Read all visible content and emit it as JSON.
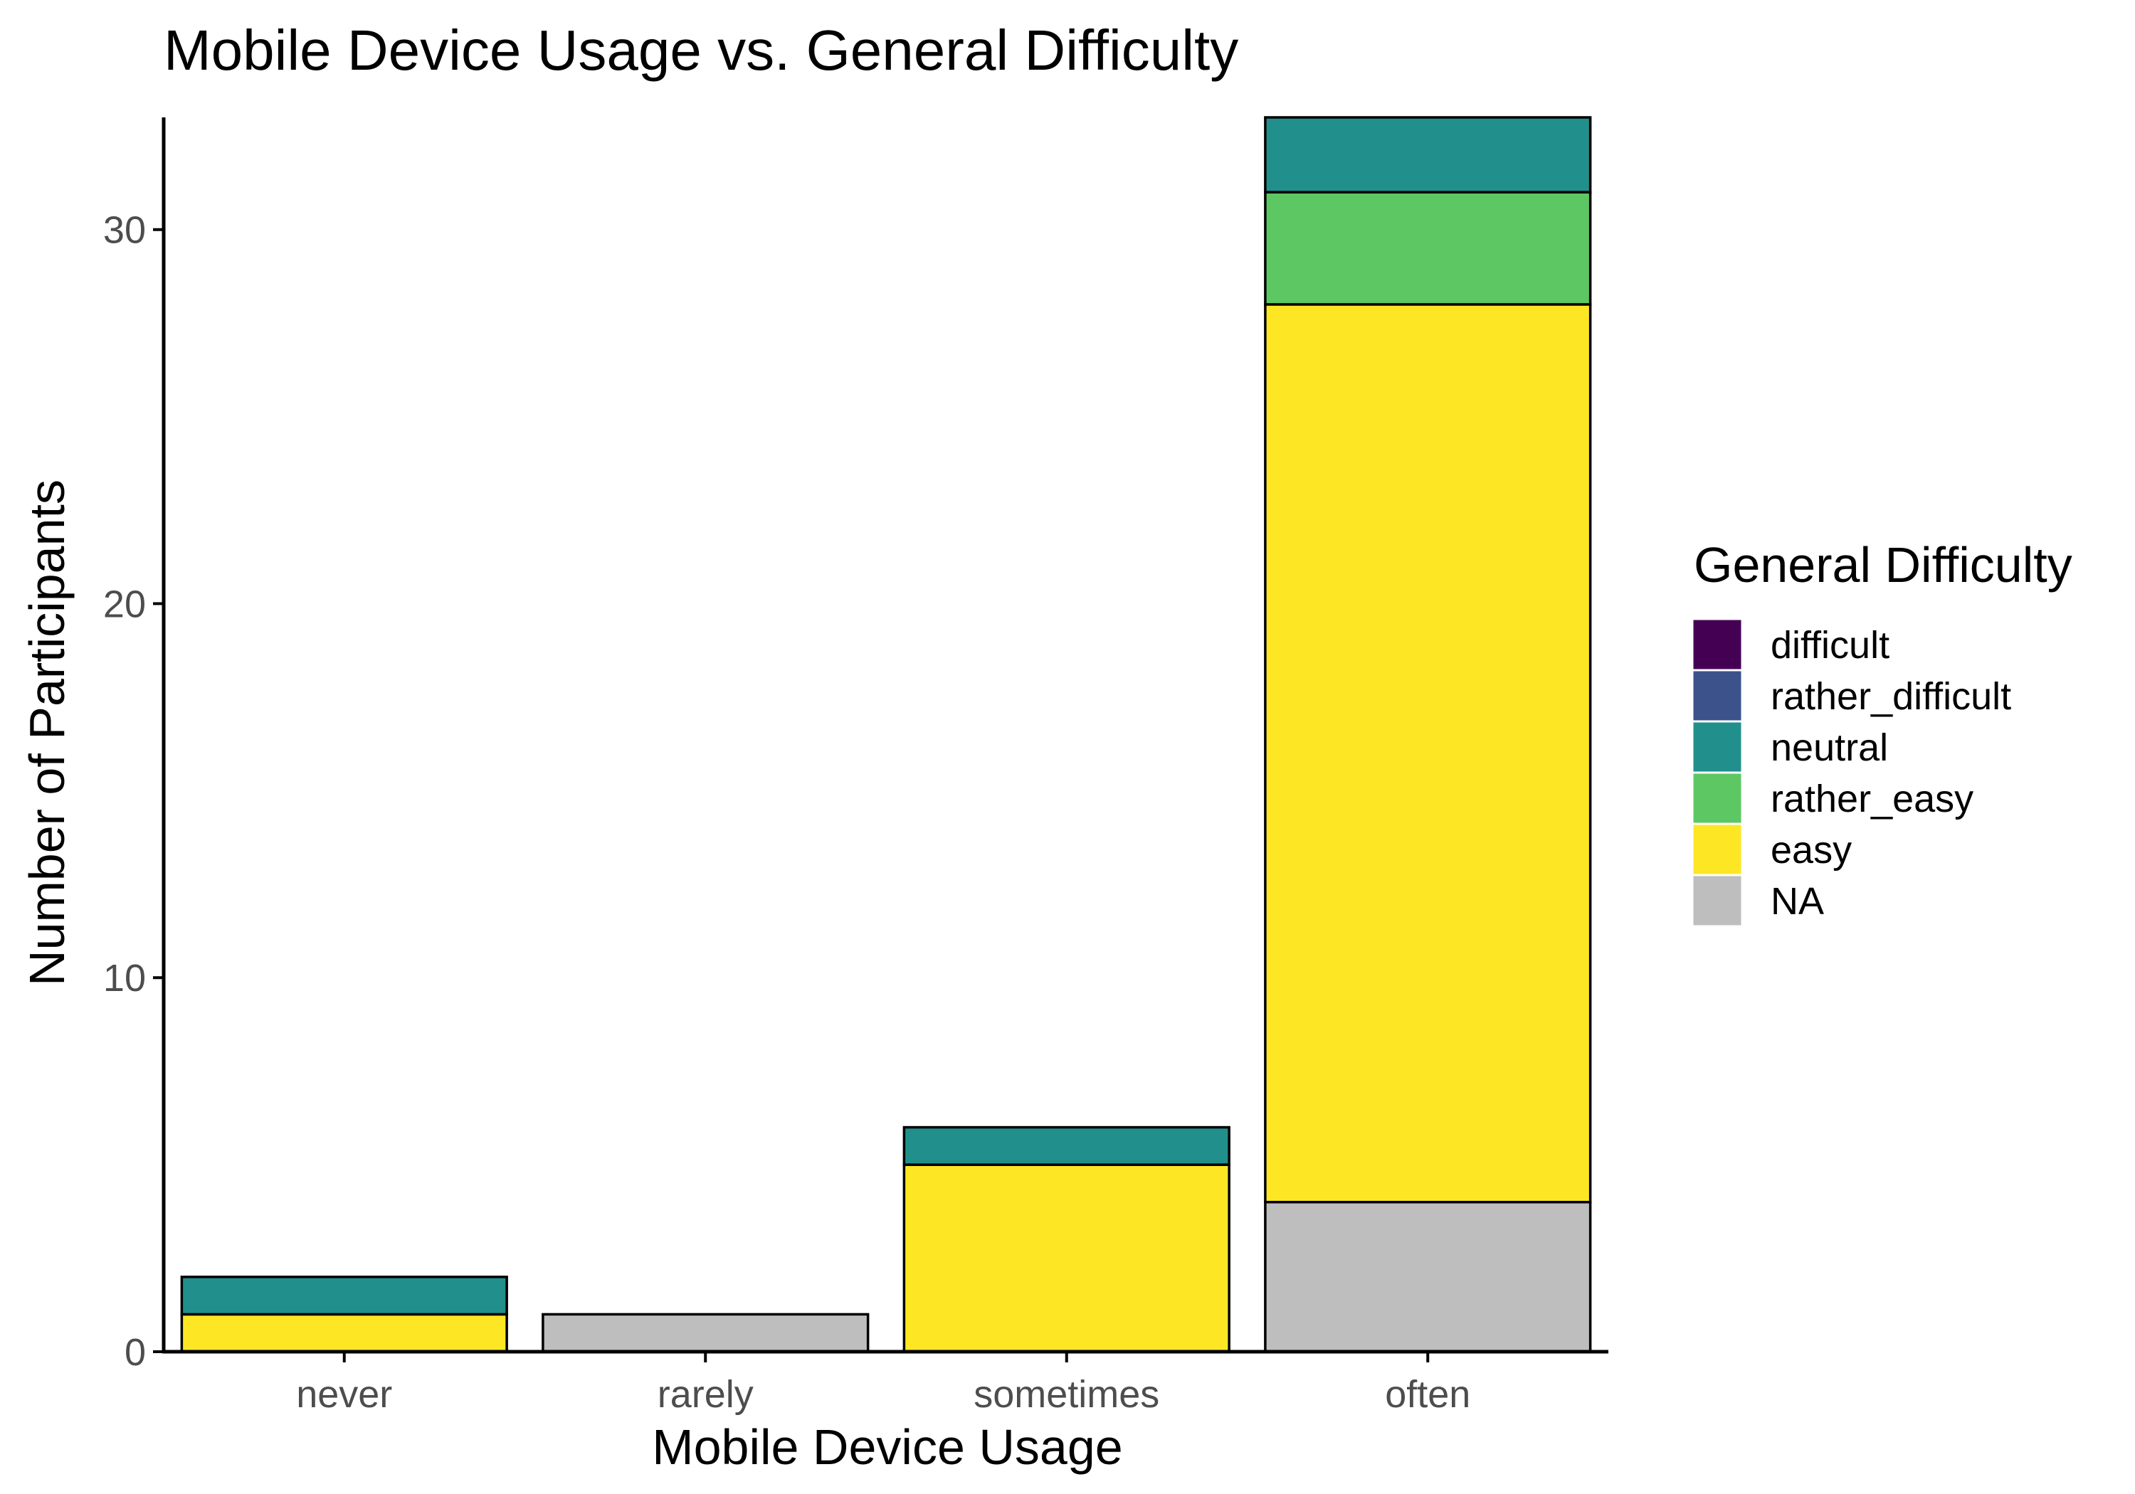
{
  "chart_data": {
    "type": "bar",
    "stacked": true,
    "title": "Mobile Device Usage vs. General Difficulty",
    "xlabel": "Mobile Device Usage",
    "ylabel": "Number of Participants",
    "categories": [
      "never",
      "rarely",
      "sometimes",
      "often"
    ],
    "ylim": [
      0,
      33
    ],
    "yticks": [
      0,
      10,
      20,
      30
    ],
    "grid": false,
    "legend": {
      "title": "General Difficulty",
      "position": "right"
    },
    "series": [
      {
        "name": "difficult",
        "color": "#440154",
        "values": [
          0,
          0,
          0,
          0
        ]
      },
      {
        "name": "rather_difficult",
        "color": "#3B528B",
        "values": [
          0,
          0,
          0,
          0
        ]
      },
      {
        "name": "neutral",
        "color": "#21908C",
        "values": [
          1,
          0,
          1,
          2
        ]
      },
      {
        "name": "rather_easy",
        "color": "#5DC863",
        "values": [
          0,
          0,
          0,
          3
        ]
      },
      {
        "name": "easy",
        "color": "#FDE725",
        "values": [
          1,
          0,
          5,
          24
        ]
      },
      {
        "name": "NA",
        "color": "#BEBEBE",
        "values": [
          0,
          1,
          0,
          4
        ]
      }
    ],
    "stack_order_bottom_to_top": [
      "NA",
      "easy",
      "rather_easy",
      "neutral",
      "rather_difficult",
      "difficult"
    ]
  }
}
